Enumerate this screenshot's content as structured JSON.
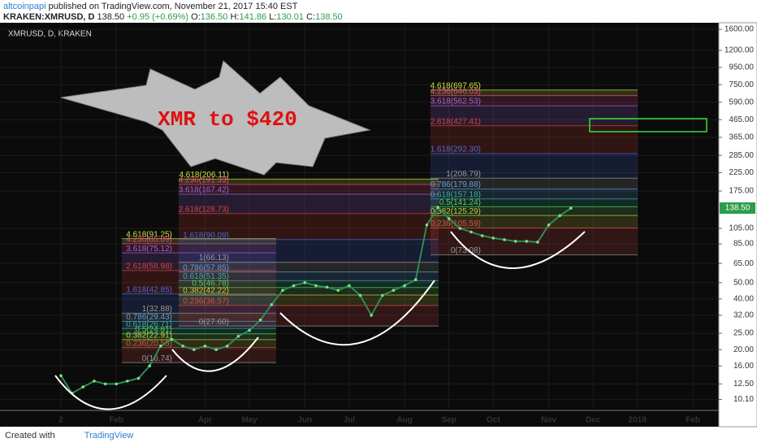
{
  "header": {
    "author": "altcoinpapi",
    "published": "published on TradingView.com, November 21, 2017 15:40 EST",
    "symbol": "KRAKEN:XMRUSD, D",
    "last": "138.50",
    "change": "+0.95 (+0.69%)",
    "o_label": "O:",
    "o": "136.50",
    "h_label": "H:",
    "h": "141.86",
    "l_label": "L:",
    "l": "130.01",
    "c_label": "C:",
    "c": "138.50"
  },
  "footer": {
    "created": "Created with",
    "brand": "TradingView"
  },
  "chart_data": {
    "type": "line",
    "title": "XMRUSD, D, KRAKEN",
    "annotation": "XMR to $420",
    "price_label": "138.50",
    "log_scale": true,
    "color": "#2e8b57",
    "categories": [
      "2",
      null,
      null,
      null,
      null,
      "Feb",
      null,
      null,
      null,
      null,
      null,
      null,
      null,
      "Apr",
      null,
      null,
      null,
      "May",
      null,
      null,
      null,
      null,
      "Jun",
      null,
      null,
      null,
      "Jul",
      null,
      null,
      null,
      null,
      "Aug",
      null,
      null,
      null,
      "Sep",
      null,
      null,
      null,
      "Oct",
      null,
      null,
      null,
      null,
      "Nov",
      null,
      null,
      null,
      "Dec",
      null,
      null,
      null,
      "2018",
      null,
      null,
      null,
      null,
      "Feb",
      null,
      null,
      null
    ],
    "values": [
      14,
      11,
      12,
      13,
      12.5,
      12.5,
      13,
      13.5,
      16,
      21,
      23,
      21,
      20,
      21,
      20,
      21,
      24,
      26,
      30,
      37,
      45,
      48,
      50,
      48,
      47,
      45,
      48,
      42,
      32,
      42,
      45,
      48,
      52,
      110,
      140,
      120,
      105,
      100,
      95,
      92,
      90,
      88,
      88,
      87,
      110,
      125,
      138.5,
      null,
      null,
      null,
      null,
      null,
      null,
      null,
      null,
      null,
      null,
      null,
      null,
      null,
      null
    ],
    "ylim": [
      8.7,
      1750
    ],
    "yticks": [
      {
        "value": 1600,
        "label": "1600.00"
      },
      {
        "value": 1200,
        "label": "1200.00"
      },
      {
        "value": 950,
        "label": "950.00"
      },
      {
        "value": 750,
        "label": "750.00"
      },
      {
        "value": 590,
        "label": "590.00"
      },
      {
        "value": 465,
        "label": "465.00"
      },
      {
        "value": 365,
        "label": "365.00"
      },
      {
        "value": 285,
        "label": "285.00"
      },
      {
        "value": 225,
        "label": "225.00"
      },
      {
        "value": 175,
        "label": "175.00"
      },
      {
        "value": 105,
        "label": "105.00"
      },
      {
        "value": 85,
        "label": "85.00"
      },
      {
        "value": 65,
        "label": "65.00"
      },
      {
        "value": 50,
        "label": "50.00"
      },
      {
        "value": 40,
        "label": "40.00"
      },
      {
        "value": 32,
        "label": "32.00"
      },
      {
        "value": 25,
        "label": "25.00"
      },
      {
        "value": 20,
        "label": "20.00"
      },
      {
        "value": 16,
        "label": "16.00"
      },
      {
        "value": 12.5,
        "label": "12.50"
      },
      {
        "value": 10.1,
        "label": "10.10"
      }
    ],
    "fib_groups": [
      [
        "4.618(91.25)",
        "4.236(85.09)",
        "3.618(75.12)",
        "2.618(58.98)",
        "1.618(42.85)",
        "1(32.88)",
        "0.786(29.43)",
        "0.618(26.71)",
        "0.5(24.81)",
        "0.382(22.91)",
        "0.236(20.55)",
        "0(16.74)"
      ],
      [
        "4.618(206.11)",
        "4.236(191.33)",
        "3.618(167.42)",
        "2.618(128.73)",
        "1.618(90.09)",
        "1(66.13)",
        "0.786(57.85)",
        "0.618(51.35)",
        "0.5(46.78)",
        "0.382(42.22)",
        "0.236(36.57)",
        "0(27.60)"
      ],
      [
        "4.618(697.65)",
        "4.236(646.03)",
        "3.618(562.53)",
        "2.618(427.41)",
        "1.618(292.30)",
        "1(208.79)",
        "0.786(179.88)",
        "0.618(157.18)",
        "0.5(141.24)",
        "0.382(125.29)",
        "0.236(105.59)",
        "0(73.08)"
      ]
    ]
  }
}
